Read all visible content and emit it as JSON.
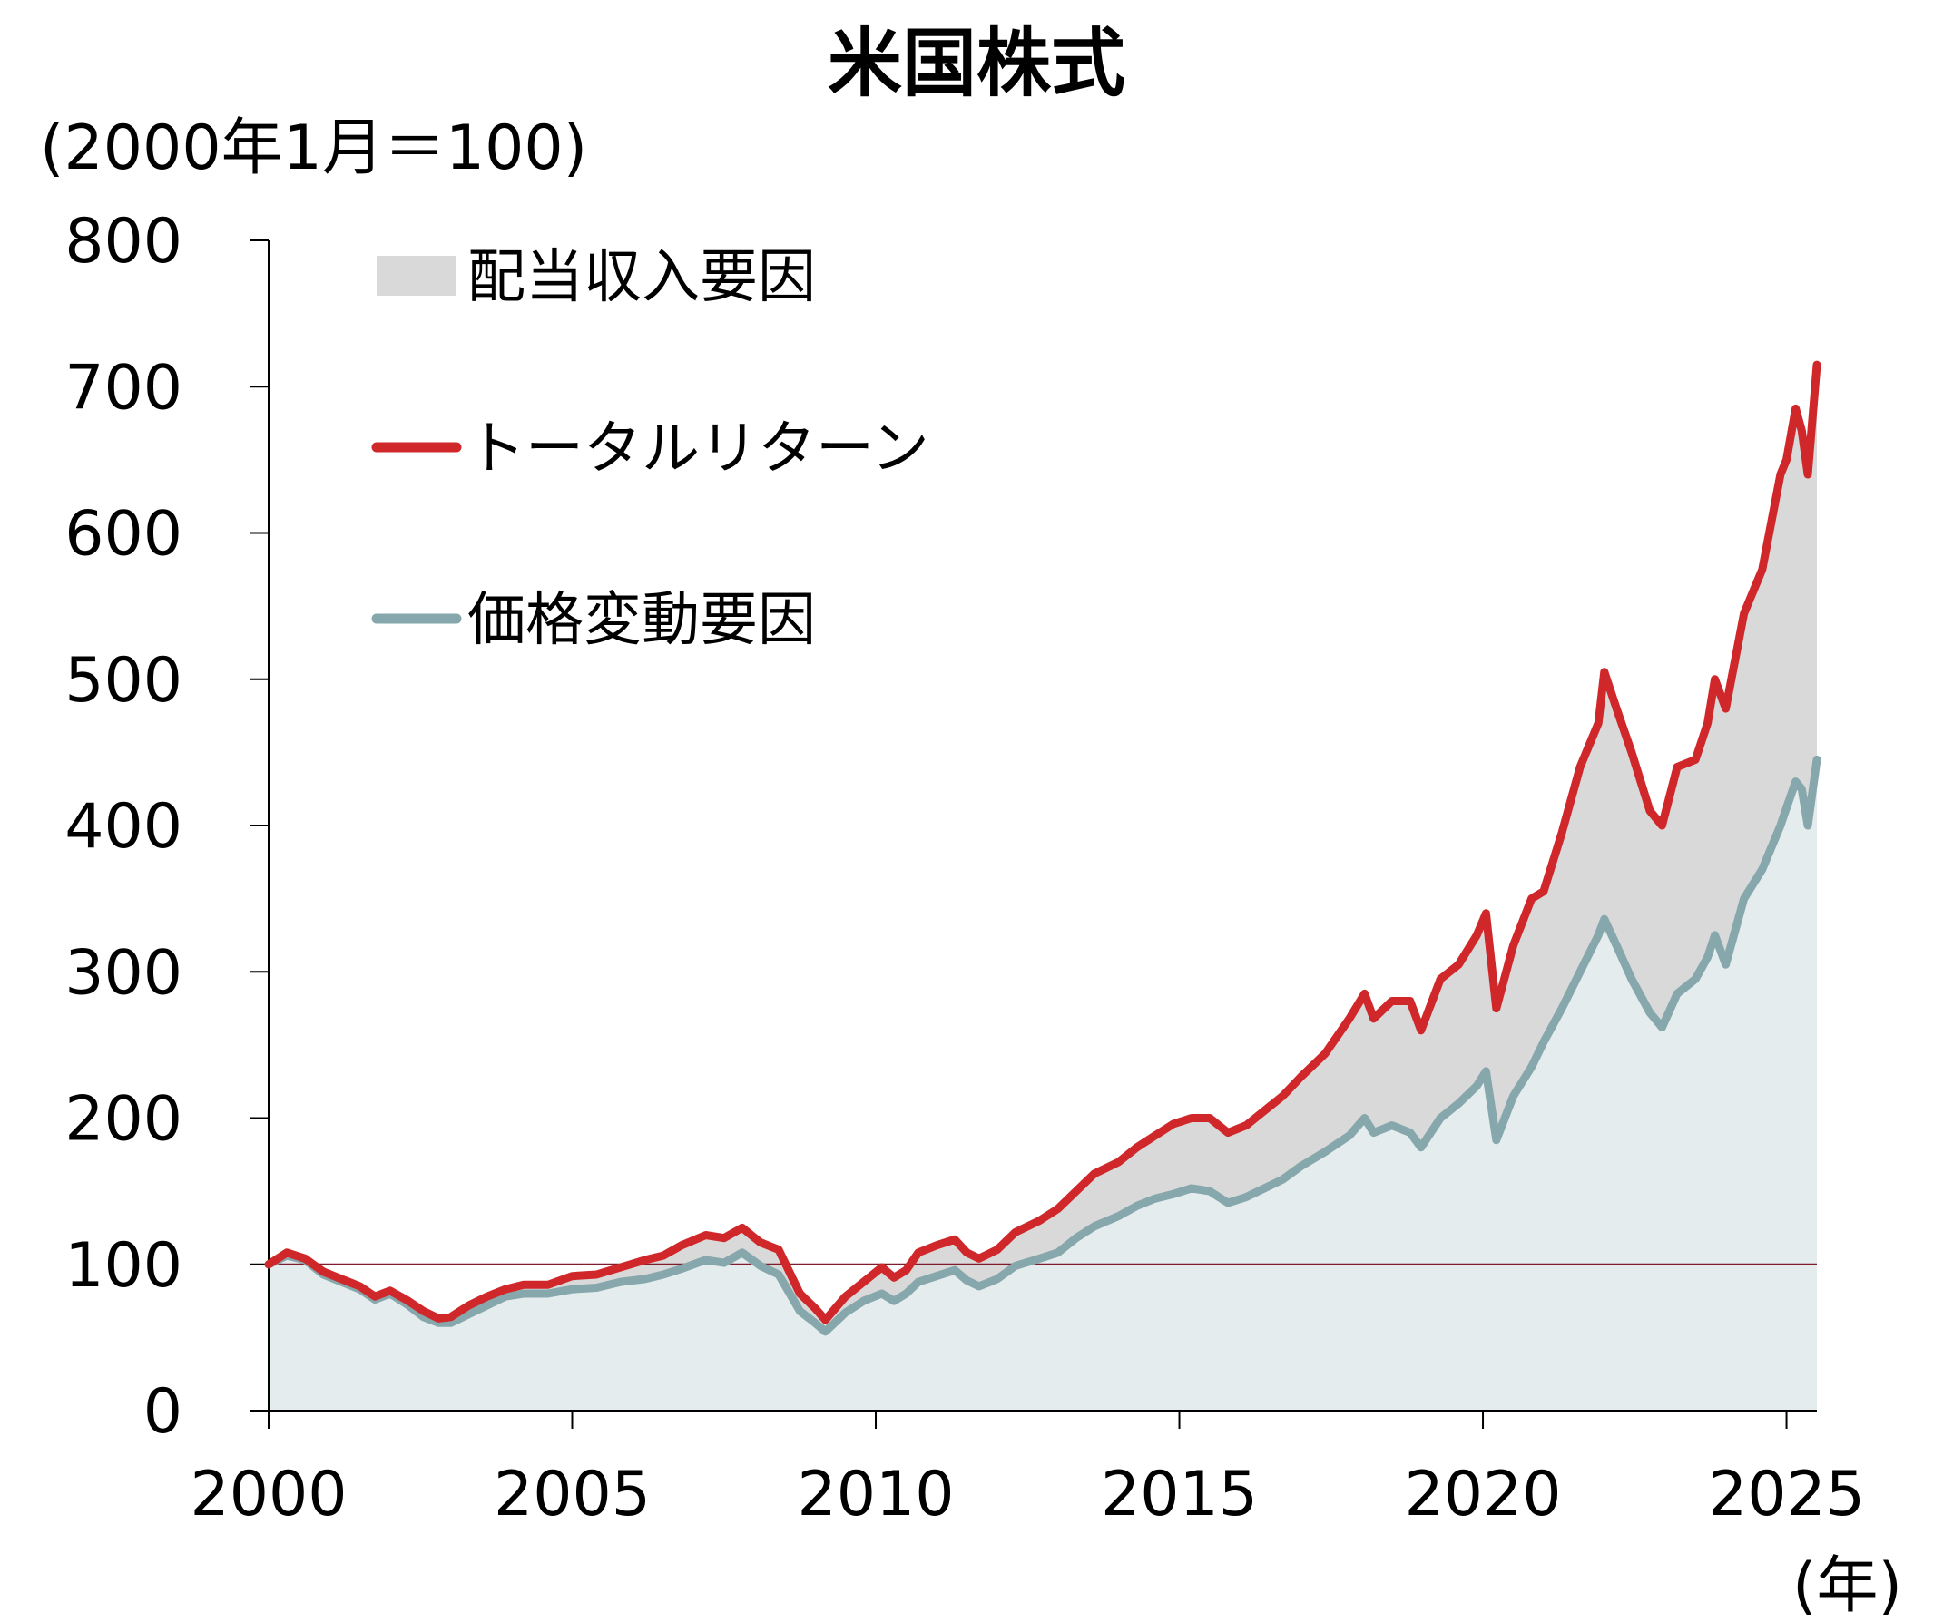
{
  "chart_data": {
    "type": "area",
    "title": "米国株式",
    "ylabel": "(2000年1月＝100)",
    "xlabel": "(年)",
    "ylim": [
      0,
      800
    ],
    "xlim": [
      2000,
      2025.5
    ],
    "yticks": [
      "0",
      "100",
      "200",
      "300",
      "400",
      "500",
      "600",
      "700",
      "800"
    ],
    "xticks": [
      "2000",
      "2005",
      "2010",
      "2015",
      "2020",
      "2025"
    ],
    "reference_line": 100,
    "legend_placement": "top-left",
    "grid": false,
    "colors": {
      "total_return": "#d0282a",
      "price": "#86a7ab",
      "dividend_fill": "#d9d9d9",
      "price_fill": "#e4ecee",
      "reference": "#7f1d2d"
    },
    "legend": [
      "配当収入要因",
      "トータルリターン",
      "価格変動要因"
    ],
    "series": [
      {
        "name": "トータルリターン",
        "x": [
          2000.0,
          2000.3,
          2000.6,
          2000.9,
          2001.2,
          2001.5,
          2001.75,
          2002.0,
          2002.3,
          2002.55,
          2002.8,
          2003.0,
          2003.3,
          2003.6,
          2003.9,
          2004.2,
          2004.6,
          2005.0,
          2005.4,
          2005.8,
          2006.2,
          2006.5,
          2006.8,
          2007.2,
          2007.5,
          2007.8,
          2008.1,
          2008.4,
          2008.75,
          2009.0,
          2009.17,
          2009.5,
          2009.8,
          2010.1,
          2010.3,
          2010.5,
          2010.7,
          2011.0,
          2011.3,
          2011.5,
          2011.7,
          2012.0,
          2012.3,
          2012.7,
          2013.0,
          2013.3,
          2013.6,
          2014.0,
          2014.3,
          2014.6,
          2014.9,
          2015.2,
          2015.5,
          2015.8,
          2016.1,
          2016.4,
          2016.7,
          2017.0,
          2017.4,
          2017.8,
          2018.05,
          2018.2,
          2018.5,
          2018.8,
          2018.98,
          2019.3,
          2019.6,
          2019.9,
          2020.05,
          2020.22,
          2020.5,
          2020.8,
          2021.0,
          2021.3,
          2021.6,
          2021.9,
          2022.0,
          2022.2,
          2022.45,
          2022.75,
          2022.95,
          2023.2,
          2023.5,
          2023.7,
          2023.82,
          2024.0,
          2024.3,
          2024.6,
          2024.9,
          2025.0,
          2025.15,
          2025.25,
          2025.35,
          2025.5
        ],
        "values": [
          100,
          108,
          104,
          95,
          90,
          85,
          78,
          82,
          75,
          68,
          63,
          64,
          72,
          78,
          83,
          86,
          86,
          92,
          93,
          98,
          103,
          106,
          113,
          120,
          118,
          125,
          115,
          110,
          80,
          70,
          62,
          78,
          88,
          98,
          91,
          96,
          108,
          113,
          117,
          108,
          104,
          110,
          122,
          130,
          138,
          150,
          162,
          170,
          180,
          188,
          196,
          200,
          200,
          190,
          195,
          205,
          215,
          228,
          244,
          268,
          285,
          268,
          280,
          280,
          260,
          295,
          305,
          325,
          340,
          275,
          318,
          350,
          355,
          395,
          440,
          470,
          505,
          480,
          450,
          410,
          400,
          440,
          445,
          470,
          500,
          480,
          545,
          575,
          640,
          650,
          685,
          670,
          640,
          715
        ]
      },
      {
        "name": "価格変動要因",
        "x": [
          2000.0,
          2000.3,
          2000.6,
          2000.9,
          2001.2,
          2001.5,
          2001.75,
          2002.0,
          2002.3,
          2002.55,
          2002.8,
          2003.0,
          2003.3,
          2003.6,
          2003.9,
          2004.2,
          2004.6,
          2005.0,
          2005.4,
          2005.8,
          2006.2,
          2006.5,
          2006.8,
          2007.2,
          2007.5,
          2007.8,
          2008.1,
          2008.4,
          2008.75,
          2009.0,
          2009.17,
          2009.5,
          2009.8,
          2010.1,
          2010.3,
          2010.5,
          2010.7,
          2011.0,
          2011.3,
          2011.5,
          2011.7,
          2012.0,
          2012.3,
          2012.7,
          2013.0,
          2013.3,
          2013.6,
          2014.0,
          2014.3,
          2014.6,
          2014.9,
          2015.2,
          2015.5,
          2015.8,
          2016.1,
          2016.4,
          2016.7,
          2017.0,
          2017.4,
          2017.8,
          2018.05,
          2018.2,
          2018.5,
          2018.8,
          2018.98,
          2019.3,
          2019.6,
          2019.9,
          2020.05,
          2020.22,
          2020.5,
          2020.8,
          2021.0,
          2021.3,
          2021.6,
          2021.9,
          2022.0,
          2022.2,
          2022.45,
          2022.75,
          2022.95,
          2023.2,
          2023.5,
          2023.7,
          2023.82,
          2024.0,
          2024.3,
          2024.6,
          2024.9,
          2025.0,
          2025.15,
          2025.25,
          2025.35,
          2025.5
        ],
        "values": [
          100,
          106,
          103,
          93,
          88,
          83,
          76,
          80,
          72,
          64,
          60,
          60,
          66,
          72,
          78,
          80,
          80,
          83,
          84,
          88,
          90,
          93,
          97,
          103,
          101,
          108,
          99,
          93,
          68,
          60,
          54,
          67,
          75,
          80,
          75,
          80,
          88,
          92,
          96,
          89,
          85,
          90,
          99,
          104,
          108,
          118,
          126,
          133,
          140,
          145,
          148,
          152,
          150,
          142,
          146,
          152,
          158,
          167,
          177,
          188,
          200,
          190,
          195,
          190,
          180,
          200,
          210,
          222,
          232,
          185,
          215,
          235,
          252,
          275,
          300,
          325,
          336,
          318,
          295,
          272,
          262,
          285,
          295,
          310,
          325,
          305,
          350,
          370,
          400,
          412,
          430,
          425,
          400,
          445
        ]
      }
    ]
  }
}
